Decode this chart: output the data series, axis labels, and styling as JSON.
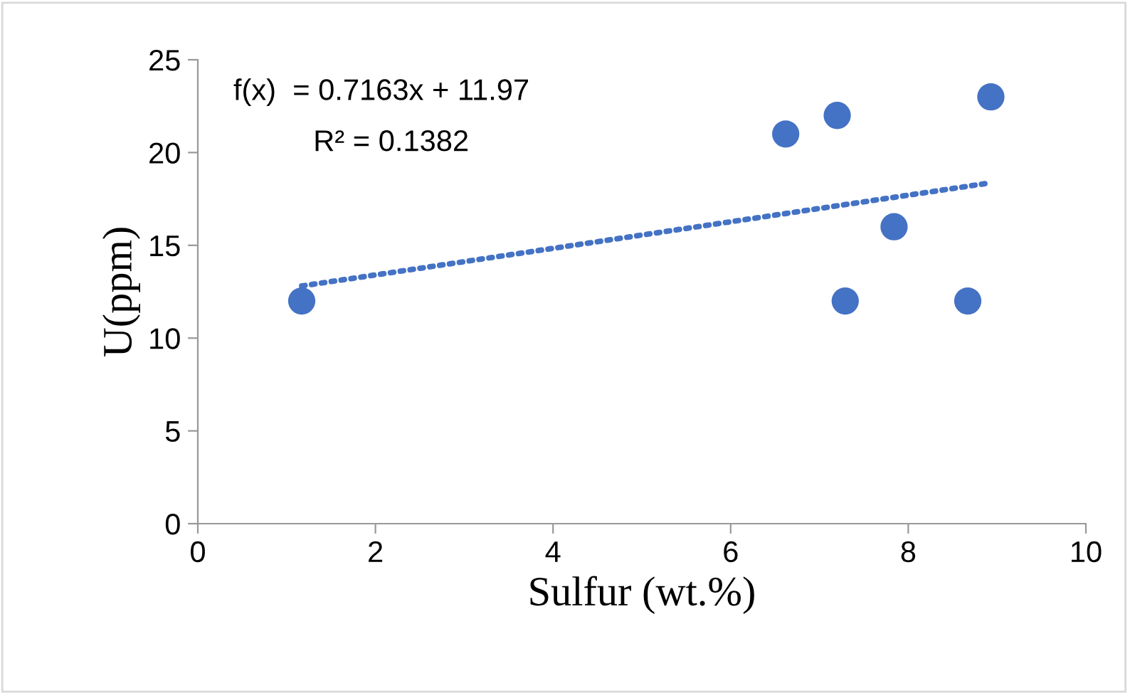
{
  "chart_data": {
    "type": "scatter",
    "xlabel": "Sulfur (wt.%)",
    "ylabel": "U(ppm)",
    "series": [
      {
        "color": "#4472c4",
        "marker": "circle",
        "x": [
          1.17,
          6.62,
          7.2,
          8.93,
          7.84,
          7.29,
          8.67
        ],
        "values": [
          12,
          21,
          22,
          23,
          16,
          12,
          12
        ]
      },
      {
        "type": "line",
        "color": "#4472c4",
        "line_style": "dotted",
        "marker": "none",
        "x": [
          1.17,
          8.93
        ],
        "values": [
          12.81,
          18.37
        ]
      }
    ],
    "annotations": [
      "f(x)  = 0.7163x + 11.97",
      "R² = 0.1382"
    ],
    "xlim": [
      0,
      10
    ],
    "xticks": [
      0,
      2,
      4,
      6,
      8,
      10
    ],
    "ylim": [
      0,
      25
    ],
    "yticks": [
      0,
      5,
      10,
      15,
      20,
      25
    ],
    "grid": false,
    "legend": false
  }
}
